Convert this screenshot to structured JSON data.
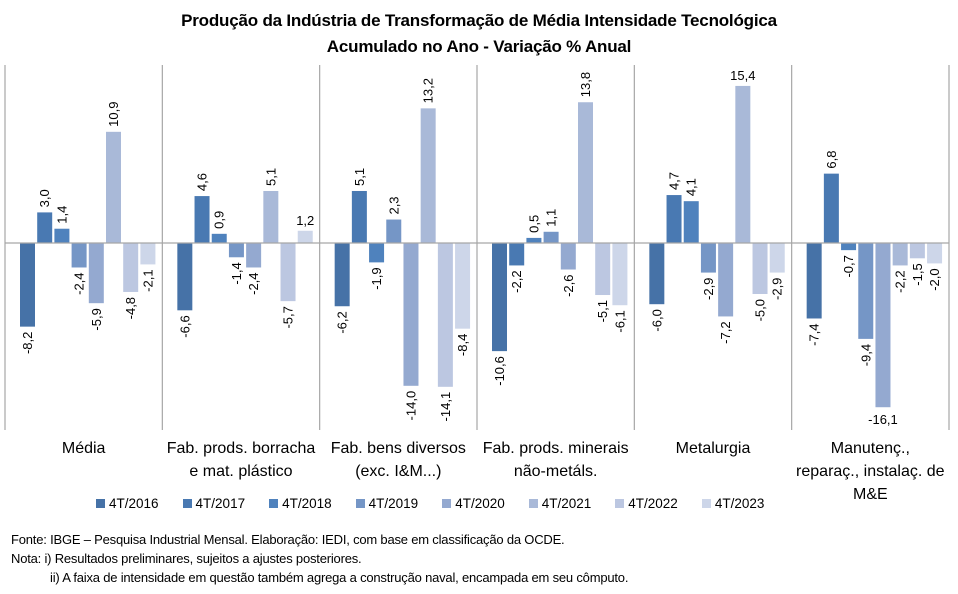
{
  "chart_data": {
    "type": "bar",
    "title": "Produção da Indústria de Transformação de Média Intensidade Tecnológica",
    "subtitle": "Acumulado no Ano - Variação % Anual",
    "xlabel": "",
    "ylabel": "",
    "ylim": [
      -17.5,
      17.5
    ],
    "grid": false,
    "legend_position": "bottom",
    "categories": [
      "Média",
      "Fab. prods. borracha\ne mat. plástico",
      "Fab. bens diversos\n(exc. I&M...)",
      "Fab. prods. minerais\nnão-metáls.",
      "Metalurgia",
      "Manutenç.,\nreparaç., instalaç. de\nM&E"
    ],
    "series": [
      {
        "name": "4T/2016",
        "color": "#4672A7",
        "values": [
          -8.2,
          -6.6,
          -6.2,
          -10.6,
          -6.0,
          -7.4
        ],
        "labels": [
          "-8,2",
          "-6,6",
          "-6,2",
          "-10,6",
          "-6,0",
          "-7,4"
        ]
      },
      {
        "name": "4T/2017",
        "color": "#4979B2",
        "values": [
          3.0,
          4.6,
          5.1,
          -2.2,
          4.7,
          6.8
        ],
        "labels": [
          "3,0",
          "4,6",
          "5,1",
          "-2,2",
          "4,7",
          "6,8"
        ]
      },
      {
        "name": "4T/2018",
        "color": "#4F82BD",
        "values": [
          1.4,
          0.9,
          -1.9,
          0.5,
          4.1,
          -0.7
        ],
        "labels": [
          "1,4",
          "0,9",
          "-1,9",
          "0,5",
          "4,1",
          "-0,7"
        ]
      },
      {
        "name": "4T/2019",
        "color": "#7596C6",
        "values": [
          -2.4,
          -1.4,
          2.3,
          1.1,
          -2.9,
          -9.4
        ],
        "labels": [
          "-2,4",
          "-1,4",
          "2,3",
          "1,1",
          "-2,9",
          "-9,4"
        ]
      },
      {
        "name": "4T/2020",
        "color": "#94A9D0",
        "values": [
          -5.9,
          -2.4,
          -14.0,
          -2.6,
          -7.2,
          -16.1
        ],
        "labels": [
          "-5,9",
          "-2,4",
          "-14,0",
          "-2,6",
          "-7,2",
          "-16,1"
        ]
      },
      {
        "name": "4T/2021",
        "color": "#A9B9D8",
        "values": [
          10.9,
          5.1,
          13.2,
          13.8,
          15.4,
          -2.2
        ],
        "labels": [
          "10,9",
          "5,1",
          "13,2",
          "13,8",
          "15,4",
          "-2,2"
        ]
      },
      {
        "name": "4T/2022",
        "color": "#BCC7E1",
        "values": [
          -4.8,
          -5.7,
          -14.1,
          -5.1,
          -5.0,
          -1.5
        ],
        "labels": [
          "-4,8",
          "-5,7",
          "-14,1",
          "-5,1",
          "-5,0",
          "-1,5"
        ]
      },
      {
        "name": "4T/2023",
        "color": "#CDD6E9",
        "values": [
          -2.1,
          1.2,
          -8.4,
          -6.1,
          -2.9,
          -2.0
        ],
        "labels": [
          "-2,1",
          "1,2",
          "-8,4",
          "-6,1",
          "-2,9",
          "-2,0"
        ]
      }
    ],
    "label_orientation": [
      [
        "rotated",
        "rotated",
        "rotated",
        "rotated",
        "rotated",
        "rotated",
        "rotated",
        "rotated"
      ],
      [
        "rotated",
        "rotated",
        "rotated",
        "rotated",
        "rotated",
        "rotated",
        "rotated",
        "horizontal"
      ],
      [
        "rotated",
        "rotated",
        "rotated",
        "rotated",
        "rotated",
        "rotated",
        "rotated",
        "rotated"
      ],
      [
        "rotated",
        "rotated",
        "rotated",
        "rotated",
        "rotated",
        "rotated",
        "rotated",
        "rotated"
      ],
      [
        "rotated",
        "rotated",
        "rotated",
        "rotated",
        "rotated",
        "horizontal",
        "rotated",
        "rotated"
      ],
      [
        "rotated",
        "rotated",
        "rotated",
        "rotated",
        "horizontal",
        "rotated",
        "rotated",
        "rotated"
      ]
    ]
  },
  "footer": {
    "source": "Fonte: IBGE – Pesquisa Industrial Mensal. Elaboração: IEDI, com base em classificação da OCDE.",
    "note1": "Nota: i) Resultados preliminares, sujeitos a ajustes posteriores.",
    "note2": "ii) A faixa de intensidade em questão também  agrega a construção naval, encampada em seu cômputo."
  }
}
